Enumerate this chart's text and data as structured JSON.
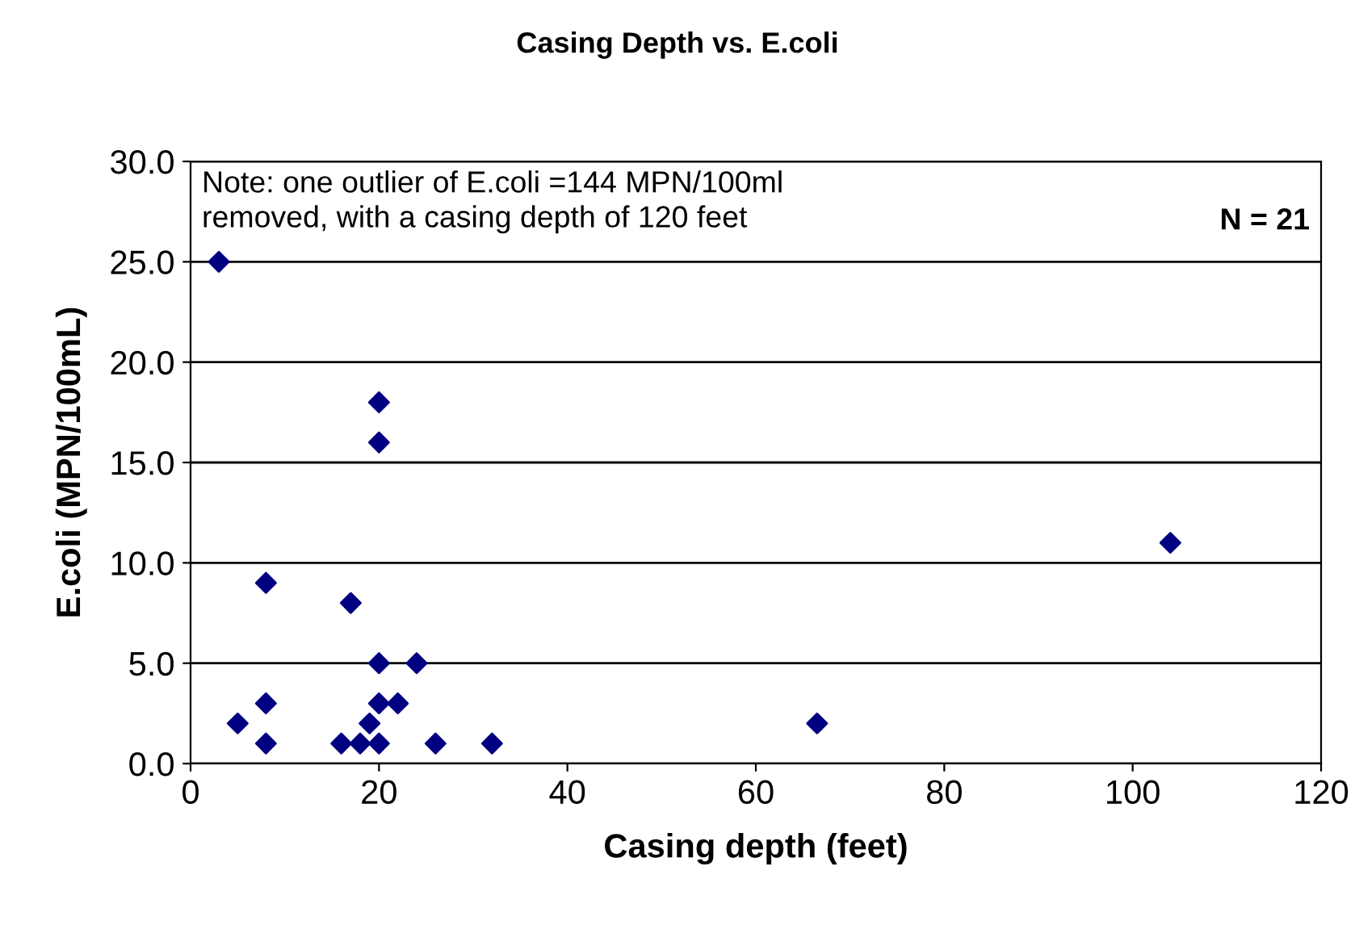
{
  "chart_data": {
    "type": "scatter",
    "title": "Casing Depth vs. E.coli",
    "xlabel": "Casing depth (feet)",
    "ylabel": "E.coli (MPN/100mL)",
    "x": [
      3,
      5,
      8,
      8,
      8,
      16,
      17,
      18,
      19,
      20,
      20,
      20,
      20,
      20,
      22,
      24,
      26,
      32,
      66.5,
      104
    ],
    "series": [
      {
        "color": "#000080",
        "values": [
          25,
          2,
          9,
          3,
          1,
          1,
          8,
          1,
          2,
          18,
          16,
          5,
          3,
          1,
          3,
          5,
          1,
          1,
          2,
          11
        ]
      }
    ],
    "marker": "diamond",
    "xlim": [
      0,
      120
    ],
    "xticks": [
      0,
      20,
      40,
      60,
      80,
      100,
      120
    ],
    "ylim": [
      0,
      30
    ],
    "yticks": [
      {
        "value": 0,
        "label": "0.0"
      },
      {
        "value": 5,
        "label": "5.0"
      },
      {
        "value": 10,
        "label": "10.0"
      },
      {
        "value": 15,
        "label": "15.0"
      },
      {
        "value": 20,
        "label": "20.0"
      },
      {
        "value": 25,
        "label": "25.0"
      },
      {
        "value": 30,
        "label": "30.0"
      }
    ],
    "grid": "y",
    "legend": false,
    "annotations": [
      "Note: one outlier of E.coli =144 MPN/100ml\nremoved, with a casing depth of 120 feet",
      "N = 21"
    ]
  }
}
